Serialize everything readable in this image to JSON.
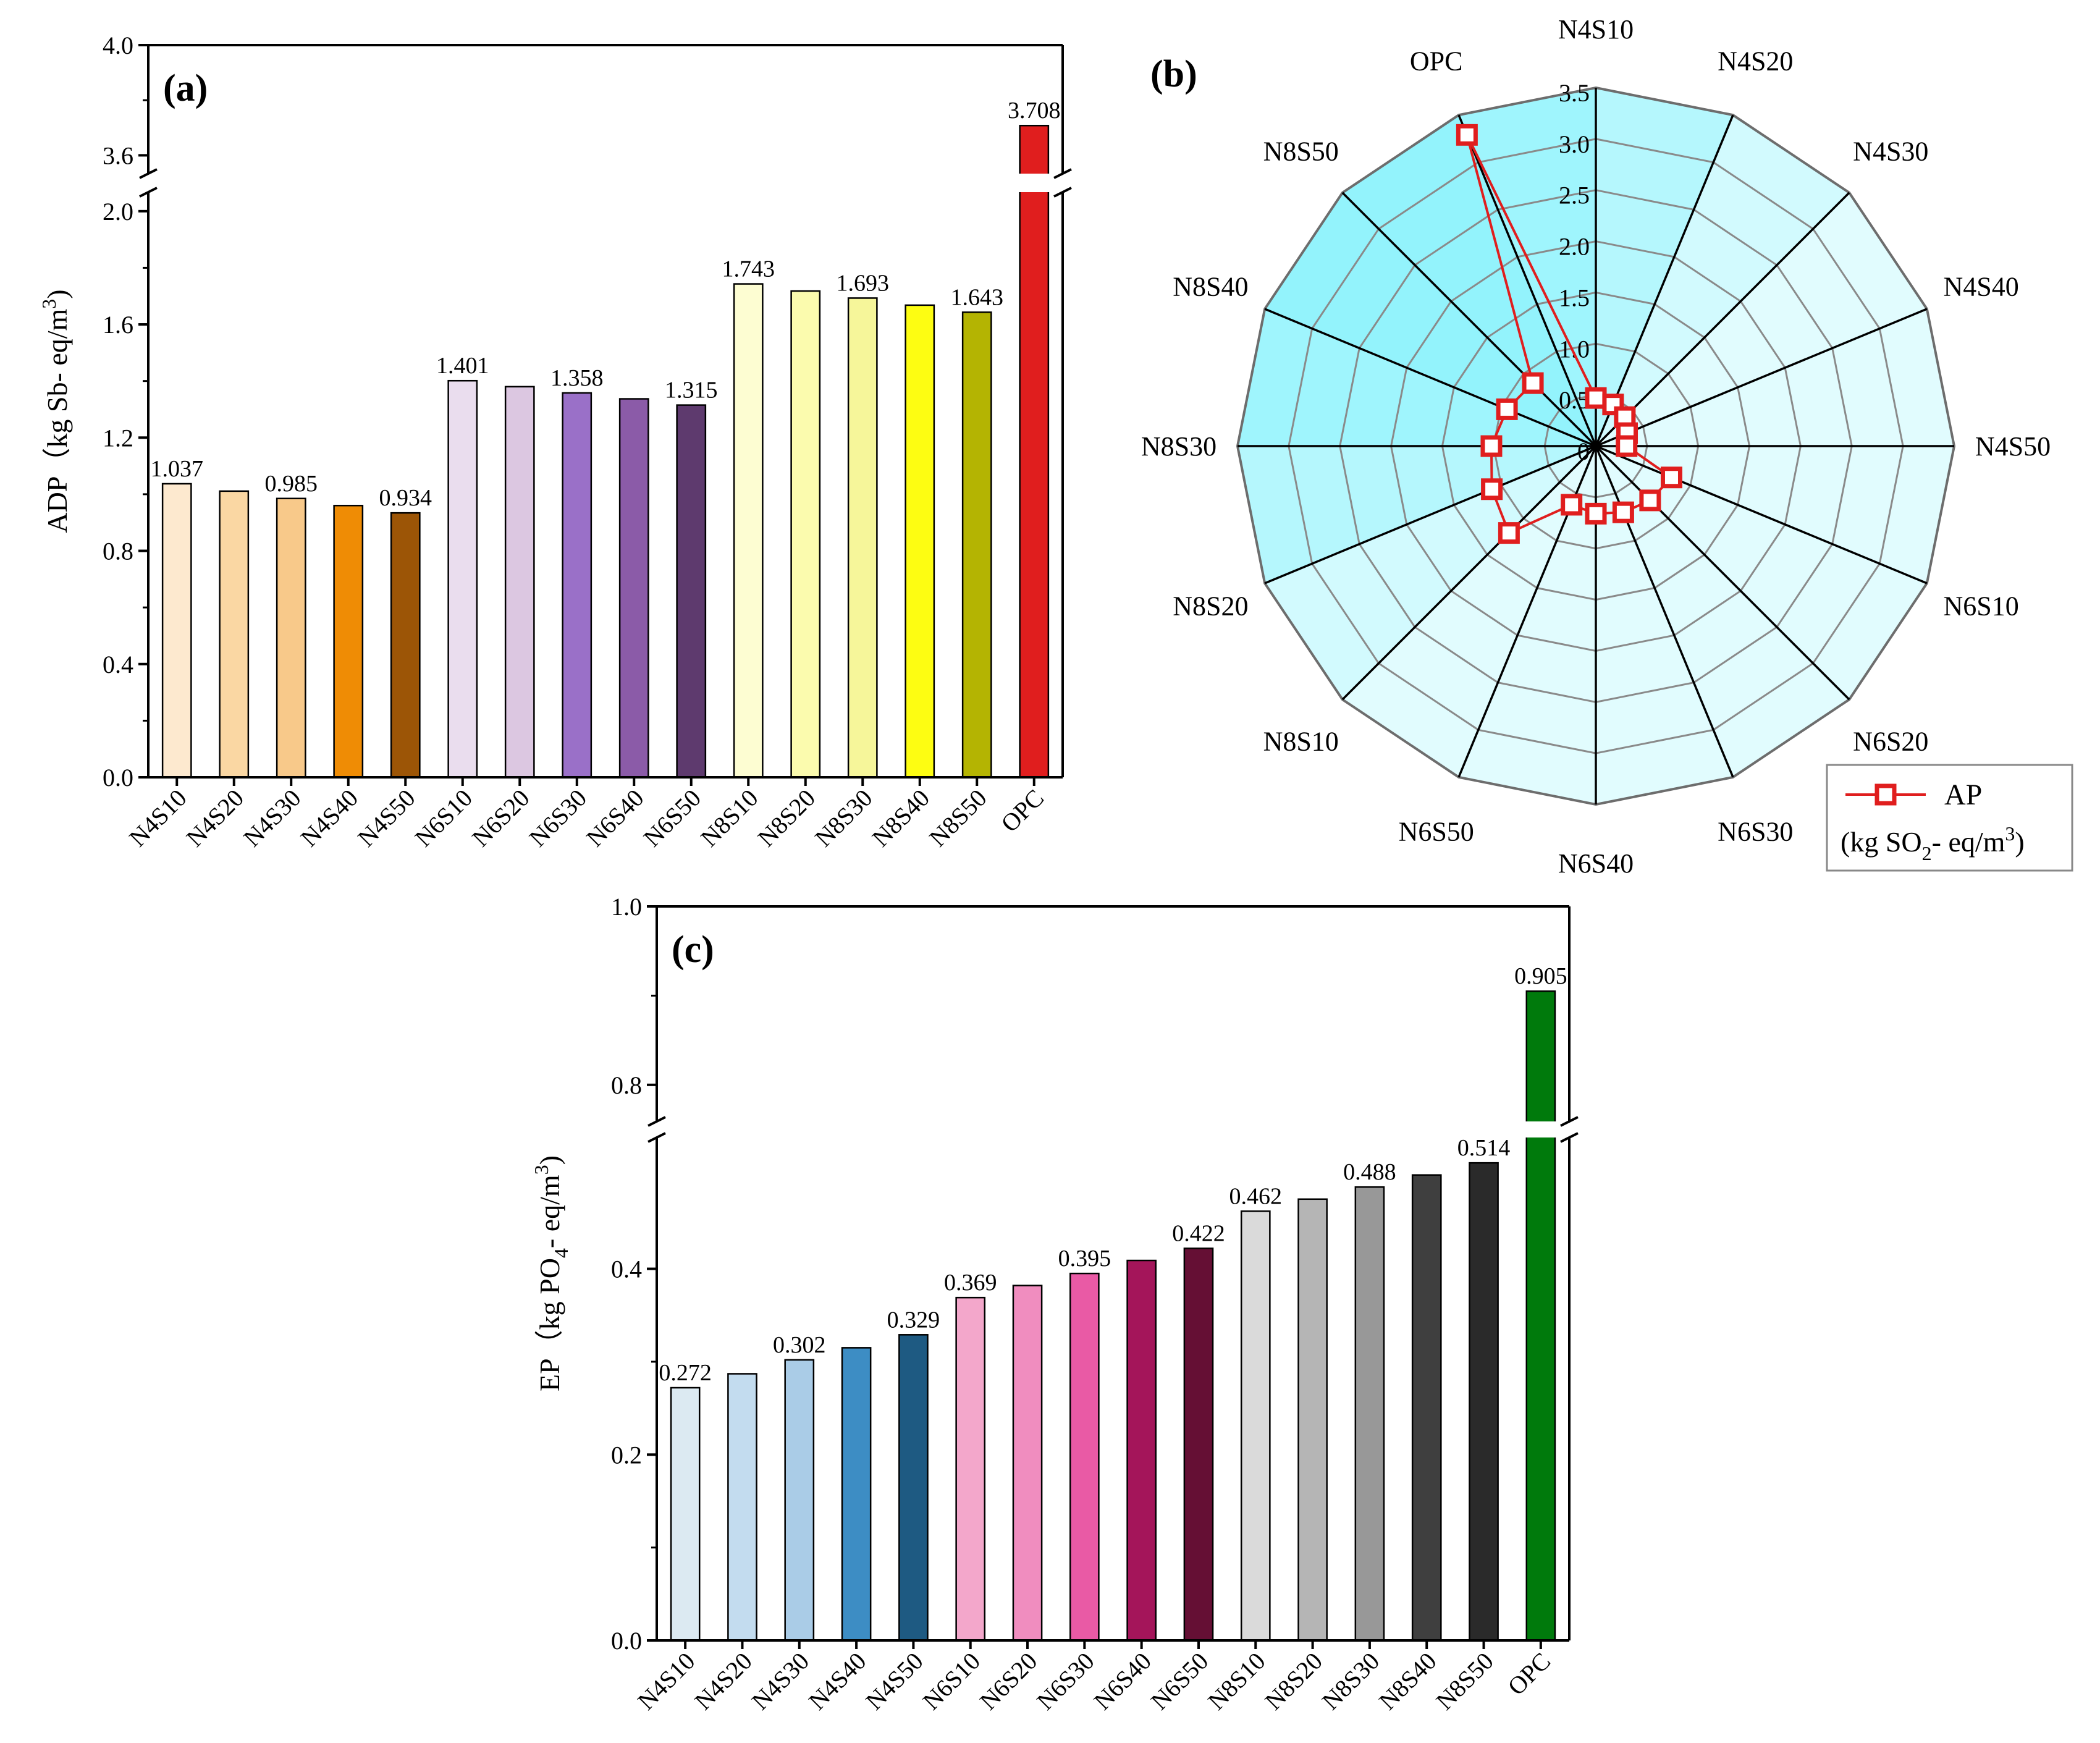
{
  "chart_data": [
    {
      "panel": "a",
      "type": "bar",
      "panel_label": "(a)",
      "ylabel": "ADP（kg Sb- eq/m",
      "ylabel_sup": "3",
      "ylabel_close": ")",
      "y_axis_break": [
        2.1,
        3.5
      ],
      "ylim_lower": [
        0,
        2.1
      ],
      "ylim_upper": [
        3.5,
        4.0
      ],
      "yticks": [
        0.0,
        0.4,
        0.8,
        1.2,
        1.6,
        2.0,
        3.6,
        4.0
      ],
      "ytick_labels": [
        "0.0",
        "0.4",
        "0.8",
        "1.2",
        "1.6",
        "2.0",
        "3.6",
        "4.0"
      ],
      "categories": [
        "N4S10",
        "N4S20",
        "N4S30",
        "N4S40",
        "N4S50",
        "N6S10",
        "N6S20",
        "N6S30",
        "N6S40",
        "N6S50",
        "N8S10",
        "N8S20",
        "N8S30",
        "N8S40",
        "N8S50",
        "OPC"
      ],
      "values": [
        1.037,
        1.011,
        0.985,
        0.96,
        0.934,
        1.401,
        1.38,
        1.358,
        1.337,
        1.315,
        1.743,
        1.718,
        1.693,
        1.668,
        1.643,
        3.708
      ],
      "data_labels": [
        "1.037",
        "",
        "0.985",
        "",
        "0.934",
        "1.401",
        "",
        "1.358",
        "",
        "1.315",
        "1.743",
        "",
        "1.693",
        "",
        "1.643",
        "3.708"
      ],
      "colors": [
        "#FDE9CF",
        "#FAD7A3",
        "#F8C98A",
        "#EF8C05",
        "#9C5506",
        "#EADDEE",
        "#DCC7E1",
        "#9A70C8",
        "#8B5BA8",
        "#5E3A6E",
        "#FDFDD2",
        "#FBFBAE",
        "#F6F69A",
        "#FDFD12",
        "#B4B402",
        "#E01E1E"
      ]
    },
    {
      "panel": "b",
      "type": "radar",
      "panel_label": "(b)",
      "categories": [
        "N4S10",
        "N4S20",
        "N4S30",
        "N4S40",
        "N4S50",
        "N6S10",
        "N6S20",
        "N6S30",
        "N6S40",
        "N6S50",
        "N8S10",
        "N8S20",
        "N8S30",
        "N8S40",
        "N8S50",
        "OPC"
      ],
      "values": [
        0.47,
        0.44,
        0.4,
        0.33,
        0.3,
        0.8,
        0.75,
        0.7,
        0.66,
        0.62,
        1.2,
        1.1,
        1.02,
        0.94,
        0.87,
        3.29
      ],
      "rmax": 3.5,
      "rticks": [
        0,
        0.5,
        1.0,
        1.5,
        2.0,
        2.5,
        3.0,
        3.5
      ],
      "rtick_labels": [
        "0",
        "0.5",
        "1.0",
        "1.5",
        "2.0",
        "2.5",
        "3.0",
        "3.5"
      ],
      "series_color": "#E01E1E",
      "legend": {
        "name": "AP",
        "unit_prefix": "(kg SO",
        "unit_sub": "2",
        "unit_mid": "- eq/m",
        "unit_sup": "3",
        "unit_close": ")",
        "position": "bottom-right"
      }
    },
    {
      "panel": "c",
      "type": "bar",
      "panel_label": "(c)",
      "ylabel": "EP（kg PO",
      "ylabel_sub": "4",
      "ylabel_mid": "- eq/m",
      "ylabel_sup": "3",
      "ylabel_close": ")",
      "y_axis_break": [
        0.55,
        0.75
      ],
      "ylim_lower": [
        0,
        0.55
      ],
      "ylim_upper": [
        0.75,
        1.0
      ],
      "yticks": [
        0.0,
        0.2,
        0.4,
        0.8,
        1.0
      ],
      "ytick_labels": [
        "0.0",
        "0.2",
        "0.4",
        "0.8",
        "1.0"
      ],
      "categories": [
        "N4S10",
        "N4S20",
        "N4S30",
        "N4S40",
        "N4S50",
        "N6S10",
        "N6S20",
        "N6S30",
        "N6S40",
        "N6S50",
        "N8S10",
        "N8S20",
        "N8S30",
        "N8S40",
        "N8S50",
        "OPC"
      ],
      "values": [
        0.272,
        0.287,
        0.302,
        0.315,
        0.329,
        0.369,
        0.382,
        0.395,
        0.409,
        0.422,
        0.462,
        0.475,
        0.488,
        0.501,
        0.514,
        0.905
      ],
      "data_labels": [
        "0.272",
        "",
        "0.302",
        "",
        "0.329",
        "0.369",
        "",
        "0.395",
        "",
        "0.422",
        "0.462",
        "",
        "0.488",
        "",
        "0.514",
        "0.905"
      ],
      "colors": [
        "#DCEAF2",
        "#C3DCEF",
        "#AACCE7",
        "#3D8DC4",
        "#1E5A82",
        "#F3A7CB",
        "#F08DBF",
        "#E95AA5",
        "#A4155A",
        "#650F34",
        "#DADADA",
        "#B5B5B5",
        "#989898",
        "#3F3F3F",
        "#2A2A2A",
        "#007A0C"
      ]
    }
  ]
}
